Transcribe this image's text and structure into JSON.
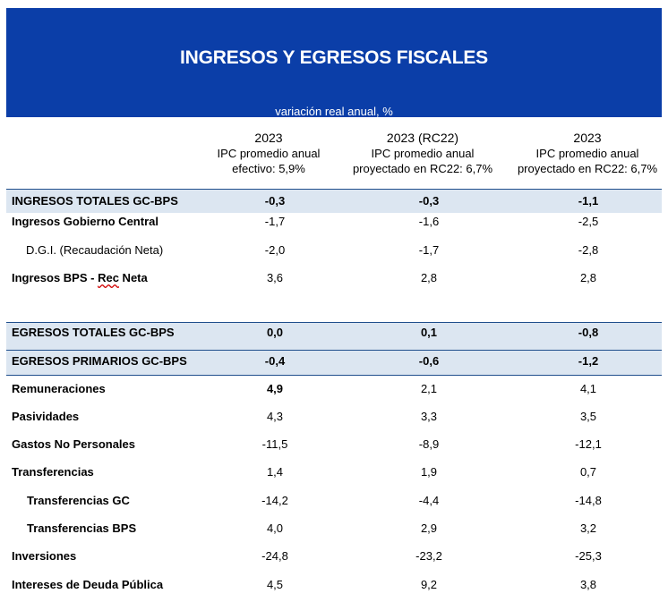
{
  "header": {
    "title": "INGRESOS Y EGRESOS FISCALES",
    "subtitle": "variación real anual, %"
  },
  "columns": [
    {
      "year": "2023",
      "note1": "IPC promedio anual",
      "note2": "efectivo: 5,9%"
    },
    {
      "year": "2023 (RC22)",
      "note1": "IPC promedio anual",
      "note2": "proyectado en RC22: 6,7%"
    },
    {
      "year": "2023",
      "note1": "IPC promedio anual",
      "note2": "proyectado en RC22: 6,7%"
    }
  ],
  "rows": [
    {
      "label": "INGRESOS TOTALES GC-BPS",
      "values": [
        "-0,3",
        "-0,3",
        "-1,1"
      ]
    },
    {
      "label": "Ingresos Gobierno Central",
      "values": [
        "-1,7",
        "-1,6",
        "-2,5"
      ]
    },
    {
      "label": "D.G.I. (Recaudación Neta)",
      "values": [
        "-2,0",
        "-1,7",
        "-2,8"
      ]
    },
    {
      "label_a": "Ingresos BPS - ",
      "label_b": "Rec",
      "label_c": " Neta",
      "values": [
        "3,6",
        "2,8",
        "2,8"
      ]
    },
    {
      "label": "EGRESOS TOTALES GC-BPS",
      "values": [
        "0,0",
        "0,1",
        "-0,8"
      ]
    },
    {
      "label": "EGRESOS PRIMARIOS GC-BPS",
      "values": [
        "-0,4",
        "-0,6",
        "-1,2"
      ]
    },
    {
      "label": "Remuneraciones",
      "values": [
        "4,9",
        "2,1",
        "4,1"
      ]
    },
    {
      "label": "Pasividades",
      "values": [
        "4,3",
        "3,3",
        "3,5"
      ]
    },
    {
      "label": "Gastos No Personales",
      "values": [
        "-11,5",
        "-8,9",
        "-12,1"
      ]
    },
    {
      "label": "Transferencias",
      "values": [
        "1,4",
        "1,9",
        "0,7"
      ]
    },
    {
      "label": "Transferencias GC",
      "values": [
        "-14,2",
        "-4,4",
        "-14,8"
      ]
    },
    {
      "label": "Transferencias BPS",
      "values": [
        "4,0",
        "2,9",
        "3,2"
      ]
    },
    {
      "label": "Inversiones",
      "values": [
        "-24,8",
        "-23,2",
        "-25,3"
      ]
    },
    {
      "label": "Intereses de Deuda Pública",
      "values": [
        "4,5",
        "9,2",
        "3,8"
      ]
    }
  ]
}
